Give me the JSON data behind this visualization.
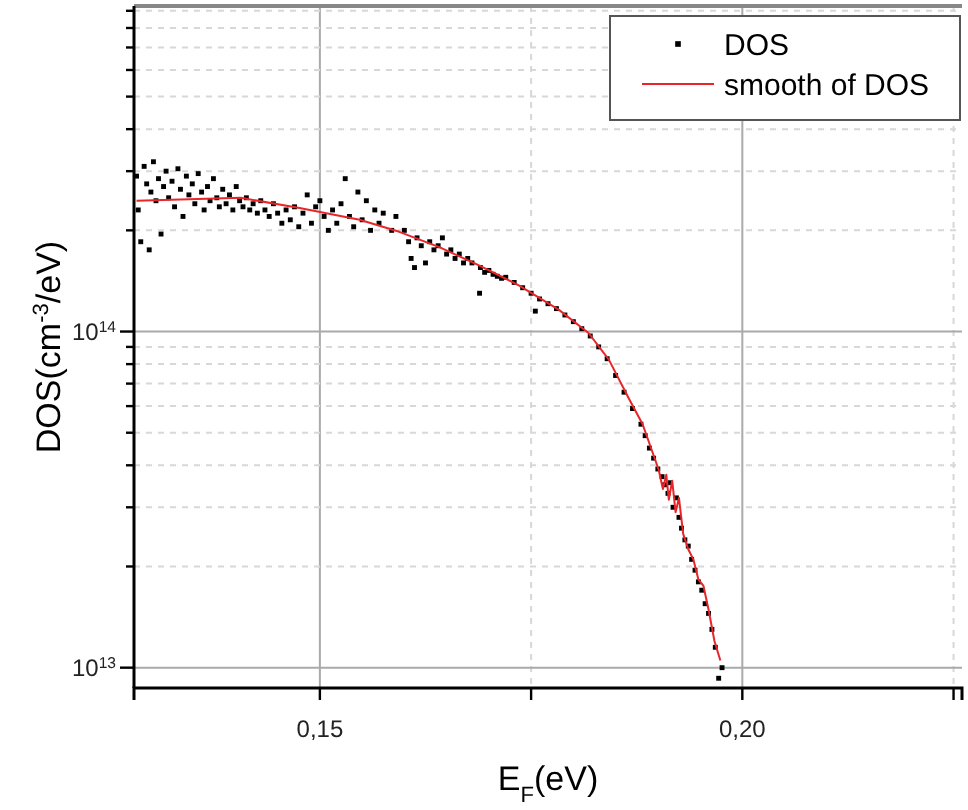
{
  "chart_data": {
    "type": "scatter",
    "xlabel": "E$_{F}$(eV)",
    "ylabel": "DOS(cm$^{-3}$/eV)",
    "log": "y",
    "grid": true,
    "legend": "top right",
    "xlim": [
      0.128,
      0.226
    ],
    "xticks": [
      {
        "value": 0.15,
        "label": "0,15"
      },
      {
        "value": 0.175,
        "label": null
      },
      {
        "value": 0.2,
        "label": "0,20"
      },
      {
        "value": 0.225,
        "label": null
      }
    ],
    "ylim": [
      8700000000000.0,
      930000000000000.0
    ],
    "yticks": [
      {
        "value": 10000000000000.0,
        "label": "10$^{13}$"
      },
      {
        "value": 20000000000000.0,
        "label": null
      },
      {
        "value": 30000000000000.0,
        "label": null
      },
      {
        "value": 40000000000000.0,
        "label": null
      },
      {
        "value": 50000000000000.0,
        "label": null
      },
      {
        "value": 60000000000000.0,
        "label": null
      },
      {
        "value": 70000000000000.0,
        "label": null
      },
      {
        "value": 80000000000000.0,
        "label": null
      },
      {
        "value": 90000000000000.0,
        "label": null
      },
      {
        "value": 100000000000000.0,
        "label": "10$^{14}$"
      },
      {
        "value": 200000000000000.0,
        "label": null
      },
      {
        "value": 300000000000000.0,
        "label": null
      },
      {
        "value": 400000000000000.0,
        "label": null
      },
      {
        "value": 500000000000000.0,
        "label": null
      },
      {
        "value": 600000000000000.0,
        "label": null
      },
      {
        "value": 700000000000000.0,
        "label": null
      },
      {
        "value": 800000000000000.0,
        "label": null
      },
      {
        "value": 900000000000000.0,
        "label": null
      }
    ],
    "series": [
      {
        "name": "DOS",
        "marker": "square",
        "color": "#000000",
        "x": [
          0.1283,
          0.1285,
          0.1288,
          0.1292,
          0.1295,
          0.1298,
          0.13,
          0.1303,
          0.1306,
          0.1309,
          0.1312,
          0.1315,
          0.1318,
          0.1321,
          0.1325,
          0.1328,
          0.1332,
          0.1335,
          0.1338,
          0.1342,
          0.1345,
          0.1349,
          0.1352,
          0.1356,
          0.136,
          0.1363,
          0.1367,
          0.137,
          0.1374,
          0.1378,
          0.1381,
          0.1385,
          0.1389,
          0.1393,
          0.1397,
          0.1401,
          0.1405,
          0.1409,
          0.1413,
          0.1417,
          0.1421,
          0.1426,
          0.143,
          0.1435,
          0.144,
          0.1445,
          0.145,
          0.1455,
          0.146,
          0.1465,
          0.147,
          0.1475,
          0.148,
          0.1485,
          0.149,
          0.1495,
          0.15,
          0.1505,
          0.151,
          0.1515,
          0.152,
          0.1525,
          0.153,
          0.1535,
          0.154,
          0.1545,
          0.155,
          0.1555,
          0.156,
          0.1565,
          0.157,
          0.1575,
          0.1585,
          0.159,
          0.16,
          0.1605,
          0.1608,
          0.1612,
          0.1615,
          0.162,
          0.1625,
          0.163,
          0.1635,
          0.164,
          0.1645,
          0.165,
          0.1655,
          0.166,
          0.1665,
          0.167,
          0.1675,
          0.168,
          0.1689,
          0.169,
          0.1695,
          0.17,
          0.1705,
          0.171,
          0.1715,
          0.172,
          0.173,
          0.174,
          0.175,
          0.1755,
          0.176,
          0.177,
          0.178,
          0.179,
          0.18,
          0.181,
          0.182,
          0.183,
          0.184,
          0.185,
          0.186,
          0.187,
          0.188,
          0.1885,
          0.189,
          0.1895,
          0.19,
          0.1905,
          0.1908,
          0.1912,
          0.1915,
          0.1918,
          0.1922,
          0.1925,
          0.1928,
          0.1932,
          0.1936,
          0.194,
          0.1944,
          0.1948,
          0.1952,
          0.1956,
          0.196,
          0.1964,
          0.1968,
          0.1972,
          0.1976
        ],
        "values": [
          290000000000000.0,
          230000000000000.0,
          185000000000000.0,
          310000000000000.0,
          275000000000000.0,
          175000000000000.0,
          260000000000000.0,
          320000000000000.0,
          245000000000000.0,
          285000000000000.0,
          195000000000000.0,
          270000000000000.0,
          300000000000000.0,
          250000000000000.0,
          280000000000000.0,
          235000000000000.0,
          305000000000000.0,
          265000000000000.0,
          220000000000000.0,
          290000000000000.0,
          255000000000000.0,
          275000000000000.0,
          240000000000000.0,
          295000000000000.0,
          260000000000000.0,
          230000000000000.0,
          270000000000000.0,
          245000000000000.0,
          285000000000000.0,
          250000000000000.0,
          235000000000000.0,
          265000000000000.0,
          240000000000000.0,
          255000000000000.0,
          230000000000000.0,
          270000000000000.0,
          245000000000000.0,
          235000000000000.0,
          250000000000000.0,
          230000000000000.0,
          240000000000000.0,
          225000000000000.0,
          245000000000000.0,
          230000000000000.0,
          220000000000000.0,
          240000000000000.0,
          225000000000000.0,
          210000000000000.0,
          230000000000000.0,
          215000000000000.0,
          235000000000000.0,
          205000000000000.0,
          225000000000000.0,
          255000000000000.0,
          210000000000000.0,
          235000000000000.0,
          245000000000000.0,
          220000000000000.0,
          200000000000000.0,
          230000000000000.0,
          210000000000000.0,
          240000000000000.0,
          285000000000000.0,
          220000000000000.0,
          205000000000000.0,
          260000000000000.0,
          215000000000000.0,
          245000000000000.0,
          200000000000000.0,
          230000000000000.0,
          210000000000000.0,
          225000000000000.0,
          200000000000000.0,
          220000000000000.0,
          200000000000000.0,
          185000000000000.0,
          165000000000000.0,
          155000000000000.0,
          190000000000000.0,
          180000000000000.0,
          160000000000000.0,
          185000000000000.0,
          175000000000000.0,
          180000000000000.0,
          190000000000000.0,
          170000000000000.0,
          175000000000000.0,
          165000000000000.0,
          170000000000000.0,
          160000000000000.0,
          165000000000000.0,
          160000000000000.0,
          130000000000000.0,
          155000000000000.0,
          150000000000000.0,
          152000000000000.0,
          148000000000000.0,
          146000000000000.0,
          144000000000000.0,
          145000000000000.0,
          140000000000000.0,
          135000000000000.0,
          130000000000000.0,
          115000000000000.0,
          125000000000000.0,
          121000000000000.0,
          117000000000000.0,
          112000000000000.0,
          107000000000000.0,
          102000000000000.0,
          97000000000000.0,
          90000000000000.0,
          83000000000000.0,
          74000000000000.0,
          66000000000000.0,
          59000000000000.0,
          53000000000000.0,
          49000000000000.0,
          45000000000000.0,
          42000000000000.0,
          39000000000000.0,
          37000000000000.0,
          35000000000000.0,
          33000000000000.0,
          35500000000000.0,
          30000000000000.0,
          32000000000000.0,
          28000000000000.0,
          26000000000000.0,
          24000000000000.0,
          23000000000000.0,
          21000000000000.0,
          19500000000000.0,
          18000000000000.0,
          17000000000000.0,
          15500000000000.0,
          14500000000000.0,
          13000000000000.0,
          11500000000000.0,
          9300000000000.0,
          10000000000000.0
        ]
      },
      {
        "name": "smooth of DOS",
        "type": "line",
        "color": "#e8262a",
        "line_style": "solid",
        "x": [
          0.1283,
          0.1335,
          0.1406,
          0.1476,
          0.1547,
          0.1594,
          0.1642,
          0.1689,
          0.1736,
          0.1783,
          0.1818,
          0.1842,
          0.1866,
          0.1882,
          0.1901,
          0.1906,
          0.191,
          0.1913,
          0.1917,
          0.1921,
          0.1925,
          0.193,
          0.1936,
          0.1942,
          0.1948,
          0.1954,
          0.196,
          0.1967,
          0.1974
        ],
        "values": [
          245000000000000.0,
          247000000000000.0,
          250000000000000.0,
          233000000000000.0,
          215000000000000.0,
          198000000000000.0,
          178000000000000.0,
          157000000000000.0,
          137000000000000.0,
          116000000000000.0,
          99000000000000.0,
          82500000000000.0,
          63000000000000.0,
          53000000000000.0,
          38800000000000.0,
          34000000000000.0,
          37500000000000.0,
          31600000000000.0,
          36000000000000.0,
          29000000000000.0,
          32000000000000.0,
          25000000000000.0,
          22500000000000.0,
          21000000000000.0,
          18300000000000.0,
          17500000000000.0,
          14900000000000.0,
          12000000000000.0,
          10500000000000.0
        ]
      }
    ]
  }
}
